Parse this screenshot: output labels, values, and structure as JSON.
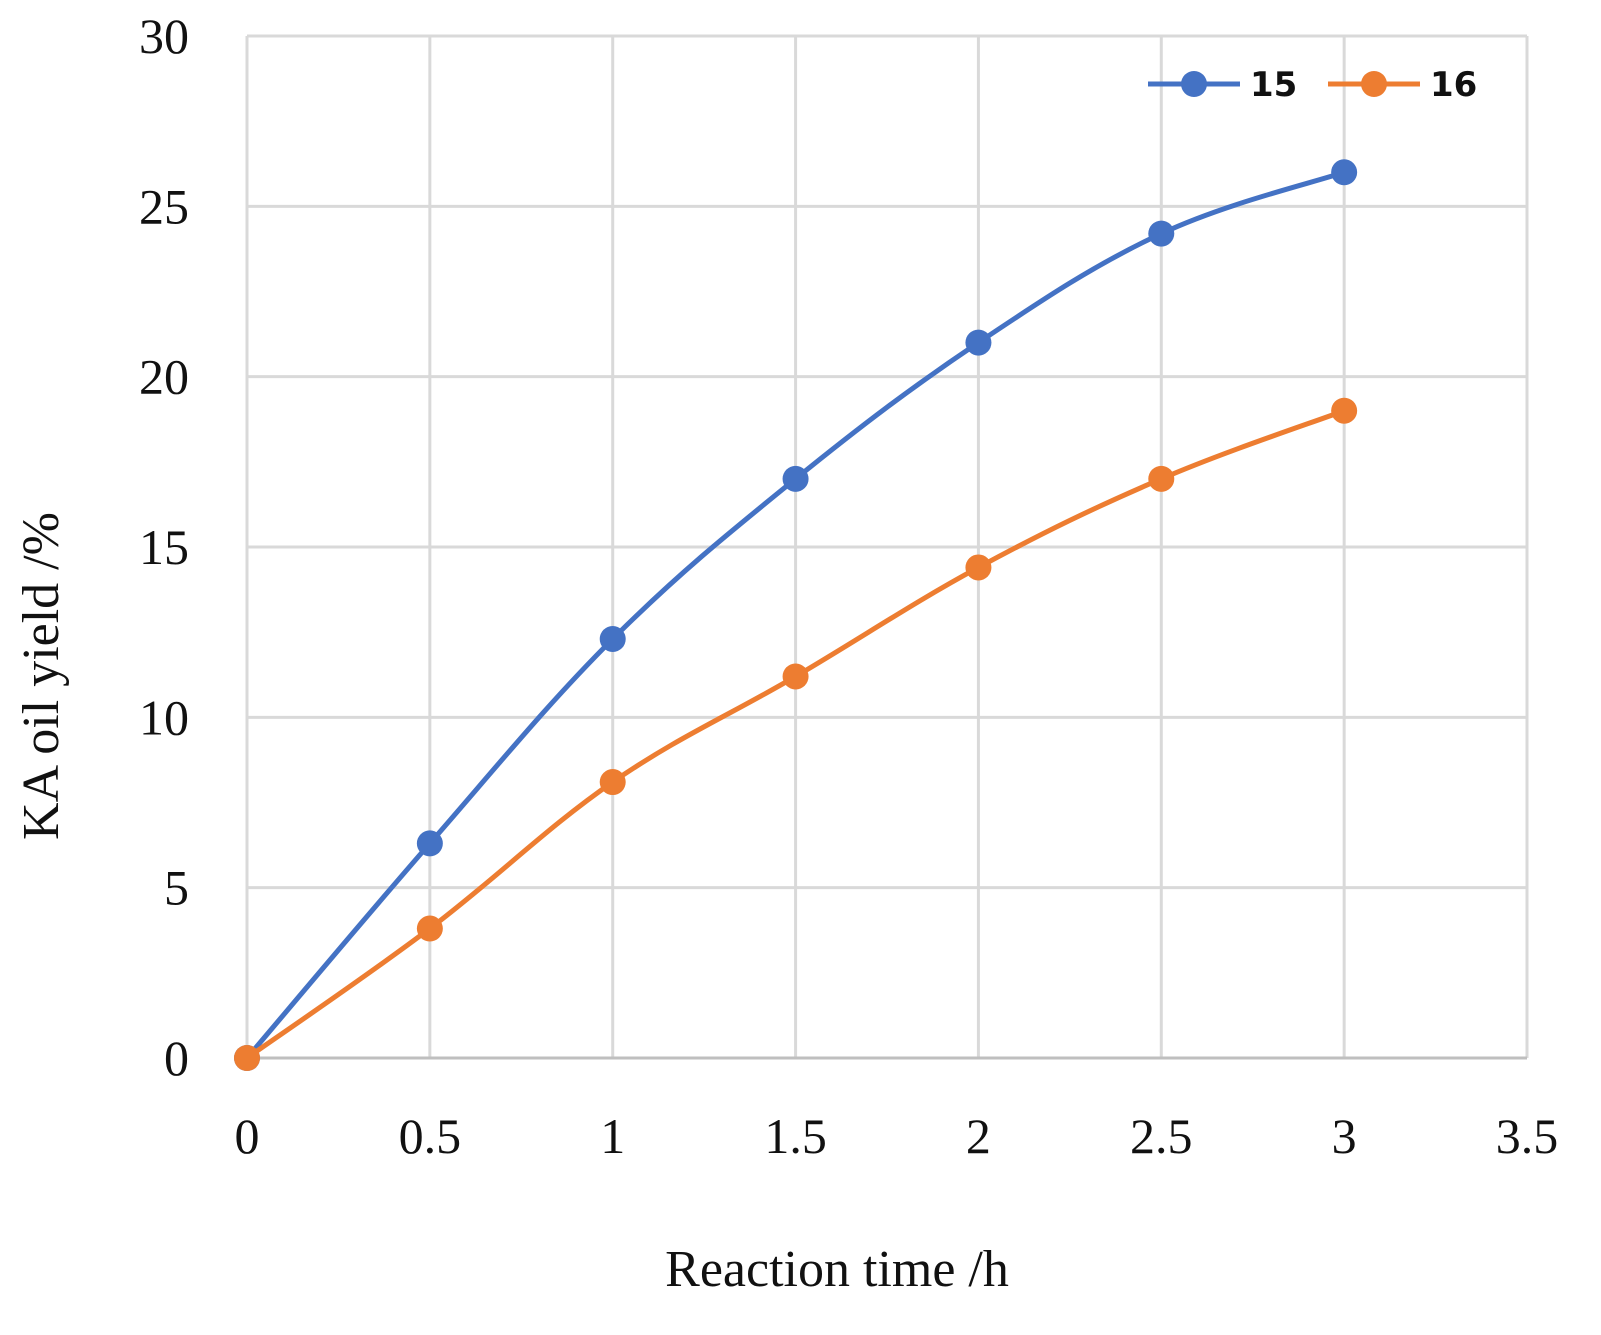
{
  "chart_data": {
    "type": "line",
    "title": "",
    "xlabel": "Reaction time /h",
    "ylabel": "KA oil yield /%",
    "xlim": [
      0,
      3.5
    ],
    "ylim": [
      0,
      30
    ],
    "x_ticks": [
      "0",
      "0.5",
      "1",
      "1.5",
      "2",
      "2.5",
      "3",
      "3.5"
    ],
    "y_ticks": [
      "0",
      "5",
      "10",
      "15",
      "20",
      "25",
      "30"
    ],
    "grid": true,
    "legend_position": "top-right",
    "series": [
      {
        "name": "15",
        "color": "#4472C4",
        "x": [
          0,
          0.5,
          1,
          1.5,
          2,
          2.5,
          3
        ],
        "y": [
          0,
          6.3,
          12.3,
          17.0,
          21.0,
          24.2,
          26.0
        ]
      },
      {
        "name": "16",
        "color": "#ED7D31",
        "x": [
          0,
          0.5,
          1,
          1.5,
          2,
          2.5,
          3
        ],
        "y": [
          0,
          3.8,
          8.1,
          11.2,
          14.4,
          17.0,
          19.0
        ]
      }
    ]
  }
}
